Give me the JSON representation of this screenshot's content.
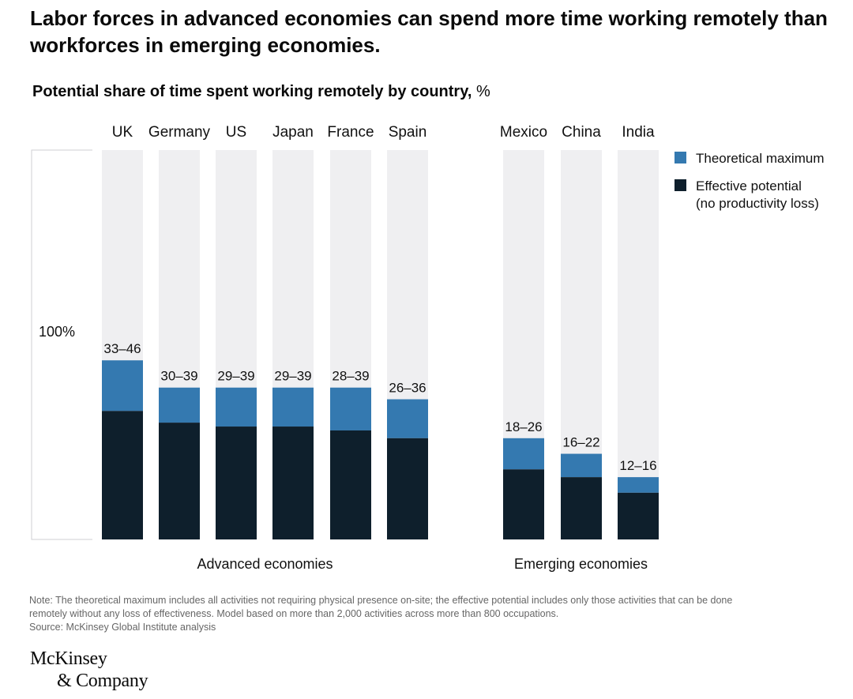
{
  "title": "Labor forces in advanced economies can spend more time working remotely than workforces in emerging economies.",
  "subtitle": "Potential share of time spent working remotely by country,",
  "subtitle_unit": "%",
  "note_lines": [
    "Note: The theoretical maximum includes all activities not requiring physical presence on-site; the effective potential includes only those activities that can be done",
    "remotely without any loss of effectiveness. Model based on more than 2,000 activities across more than 800 occupations."
  ],
  "source": "Source: McKinsey Global Institute analysis",
  "logo": {
    "line1": "McKinsey",
    "line2": "& Company"
  },
  "colors": {
    "theoretical": "#3479b0",
    "effective": "#0e1f2c",
    "background_bar": "#efeff1",
    "text": "#111111"
  },
  "chart_data": {
    "type": "bar",
    "stacked": true,
    "title": "Potential share of time spent working remotely by country, %",
    "ylabel": "%",
    "ylim": [
      0,
      100
    ],
    "reference_label": "100%",
    "groups": [
      {
        "name": "Advanced economies",
        "categories": [
          "UK",
          "Germany",
          "US",
          "Japan",
          "France",
          "Spain"
        ]
      },
      {
        "name": "Emerging economies",
        "categories": [
          "Mexico",
          "China",
          "India"
        ]
      }
    ],
    "categories": [
      "UK",
      "Germany",
      "US",
      "Japan",
      "France",
      "Spain",
      "Mexico",
      "China",
      "India"
    ],
    "range_labels": [
      "33–46",
      "30–39",
      "29–39",
      "29–39",
      "28–39",
      "26–36",
      "18–26",
      "16–22",
      "12–16"
    ],
    "series": [
      {
        "name": "Effective potential (no productivity loss)",
        "values": [
          33,
          30,
          29,
          29,
          28,
          26,
          18,
          16,
          12
        ]
      },
      {
        "name": "Theoretical maximum",
        "values": [
          46,
          39,
          39,
          39,
          39,
          36,
          26,
          22,
          16
        ]
      }
    ],
    "legend": [
      {
        "name": "Theoretical maximum",
        "lines": [
          "Theoretical maximum"
        ]
      },
      {
        "name": "Effective potential",
        "lines": [
          "Effective potential",
          "(no productivity loss)"
        ]
      }
    ],
    "legend_position": "top-right"
  }
}
